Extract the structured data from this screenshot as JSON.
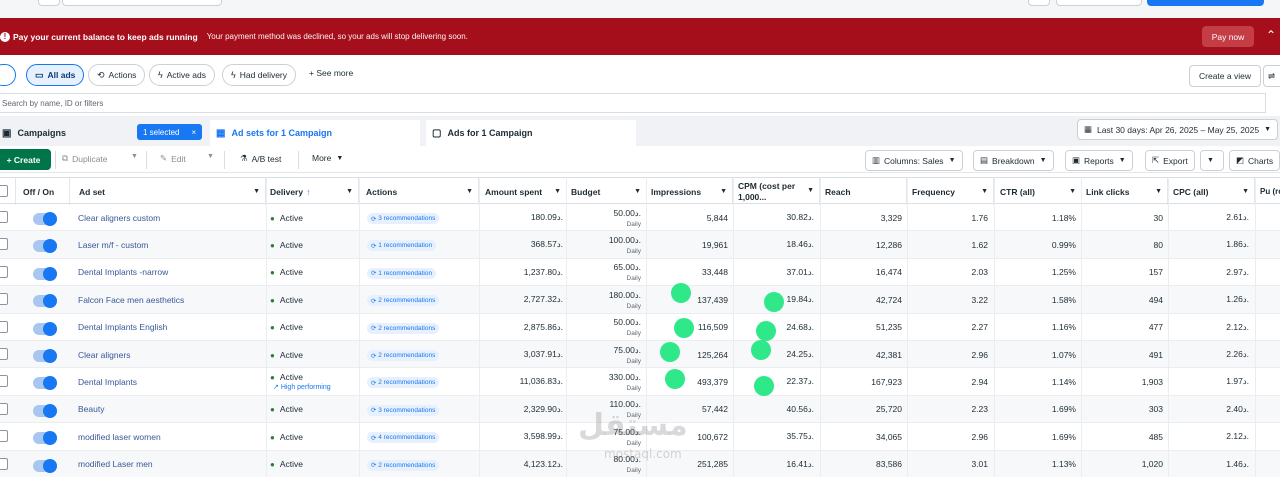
{
  "alert": {
    "title": "Pay your current balance to keep ads running",
    "message": "Your payment method was declined, so your ads will stop delivering soon.",
    "pay_label": "Pay now",
    "color": "#a50f1b"
  },
  "filters": {
    "all_ads": "All ads",
    "actions": "Actions",
    "active_ads": "Active ads",
    "had_delivery": "Had delivery",
    "see_more": "See more",
    "create_view": "Create a view"
  },
  "search": {
    "placeholder": "Search by name, ID or filters"
  },
  "tabs": {
    "campaigns": "Campaigns",
    "selected": "1 selected",
    "adsets": "Ad sets for 1 Campaign",
    "ads": "Ads for 1 Campaign",
    "date_range": "Last 30 days: Apr 26, 2025 – May 25, 2025"
  },
  "toolbar": {
    "create": "Create",
    "duplicate": "Duplicate",
    "edit": "Edit",
    "ab_test": "A/B test",
    "more": "More",
    "columns": "Columns: Sales",
    "breakdown": "Breakdown",
    "reports": "Reports",
    "export": "Export",
    "charts": "Charts"
  },
  "columns": {
    "off_on": "Off / On",
    "ad_set": "Ad set",
    "delivery": "Delivery",
    "actions": "Actions",
    "amount_spent": "Amount spent",
    "budget": "Budget",
    "impressions": "Impressions",
    "cpm": "CPM (cost per 1,000...",
    "reach": "Reach",
    "frequency": "Frequency",
    "ctr": "CTR (all)",
    "link_clicks": "Link clicks",
    "cpc": "CPC (all)",
    "purchase": "Pu (re"
  },
  "budget_period": "Daily",
  "currency": "د.",
  "rows": [
    {
      "name": "Clear aligners custom",
      "delivery": "Active",
      "badge": "",
      "rec": "3 recommendations",
      "spent": "180.09",
      "budget": "50.00",
      "impressions": "5,844",
      "cpm": "30.82",
      "reach": "3,329",
      "frequency": "1.76",
      "ctr": "1.18%",
      "clicks": "30",
      "cpc": "2.61"
    },
    {
      "name": "Laser m/f - custom",
      "delivery": "Active",
      "badge": "",
      "rec": "1 recommendation",
      "spent": "368.57",
      "budget": "100.00",
      "impressions": "19,961",
      "cpm": "18.46",
      "reach": "12,286",
      "frequency": "1.62",
      "ctr": "0.99%",
      "clicks": "80",
      "cpc": "1.86"
    },
    {
      "name": "Dental Implants -narrow",
      "delivery": "Active",
      "badge": "",
      "rec": "1 recommendation",
      "spent": "1,237.80",
      "budget": "65.00",
      "impressions": "33,448",
      "cpm": "37.01",
      "reach": "16,474",
      "frequency": "2.03",
      "ctr": "1.25%",
      "clicks": "157",
      "cpc": "2.97"
    },
    {
      "name": "Falcon Face men aesthetics",
      "delivery": "Active",
      "badge": "",
      "rec": "2 recommendations",
      "spent": "2,727.32",
      "budget": "180.00",
      "impressions": "137,439",
      "cpm": "19.84",
      "reach": "42,724",
      "frequency": "3.22",
      "ctr": "1.58%",
      "clicks": "494",
      "cpc": "1.26"
    },
    {
      "name": "Dental Implants English",
      "delivery": "Active",
      "badge": "",
      "rec": "2 recommendations",
      "spent": "2,875.86",
      "budget": "50.00",
      "impressions": "116,509",
      "cpm": "24.68",
      "reach": "51,235",
      "frequency": "2.27",
      "ctr": "1.16%",
      "clicks": "477",
      "cpc": "2.12"
    },
    {
      "name": "Clear aligners",
      "delivery": "Active",
      "badge": "",
      "rec": "2 recommendations",
      "spent": "3,037.91",
      "budget": "75.00",
      "impressions": "125,264",
      "cpm": "24.25",
      "reach": "42,381",
      "frequency": "2.96",
      "ctr": "1.07%",
      "clicks": "491",
      "cpc": "2.26"
    },
    {
      "name": "Dental Implants",
      "delivery": "Active",
      "badge": "High performing",
      "rec": "2 recommendations",
      "spent": "11,036.83",
      "budget": "330.00",
      "impressions": "493,379",
      "cpm": "22.37",
      "reach": "167,923",
      "frequency": "2.94",
      "ctr": "1.14%",
      "clicks": "1,903",
      "cpc": "1.97"
    },
    {
      "name": "Beauty",
      "delivery": "Active",
      "badge": "",
      "rec": "3 recommendations",
      "spent": "2,329.90",
      "budget": "110.00",
      "impressions": "57,442",
      "cpm": "40.56",
      "reach": "25,720",
      "frequency": "2.23",
      "ctr": "1.69%",
      "clicks": "303",
      "cpc": "2.40"
    },
    {
      "name": "modified laser women",
      "delivery": "Active",
      "badge": "",
      "rec": "4 recommendations",
      "spent": "3,598.99",
      "budget": "75.00",
      "impressions": "100,672",
      "cpm": "35.75",
      "reach": "34,065",
      "frequency": "2.96",
      "ctr": "1.69%",
      "clicks": "485",
      "cpc": "2.12"
    },
    {
      "name": "modified Laser men",
      "delivery": "Active",
      "badge": "",
      "rec": "2 recommendations",
      "spent": "4,123.12",
      "budget": "80.00",
      "impressions": "251,285",
      "cpm": "16.41",
      "reach": "83,586",
      "frequency": "3.01",
      "ctr": "1.13%",
      "clicks": "1,020",
      "cpc": "1.46"
    }
  ],
  "watermark": {
    "text": "مستقل",
    "sub": "mostaql.com"
  }
}
